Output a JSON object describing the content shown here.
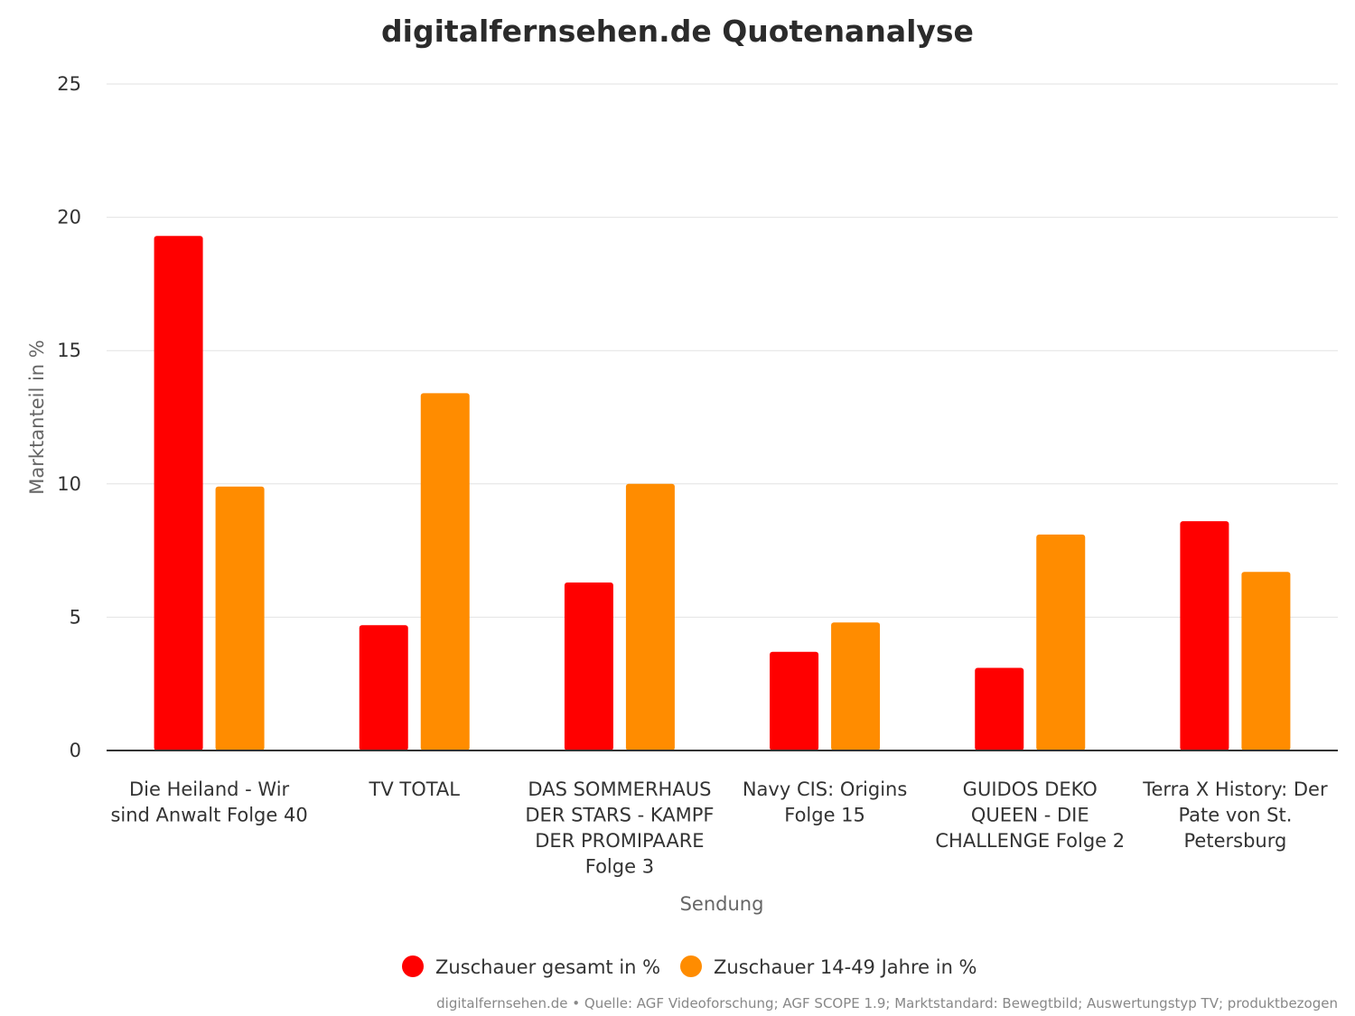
{
  "chart_data": {
    "type": "bar",
    "title": "digitalfernsehen.de Quotenanalyse",
    "xlabel": "Sendung",
    "ylabel": "Marktanteil in %",
    "ylim": [
      0,
      25
    ],
    "yticks": [
      "0",
      "5",
      "10",
      "15",
      "20",
      "25"
    ],
    "grid": true,
    "legend_position": "bottom-center",
    "categories": [
      [
        "Die Heiland - Wir",
        "sind Anwalt Folge 40"
      ],
      [
        "TV TOTAL"
      ],
      [
        "DAS SOMMERHAUS",
        "DER STARS - KAMPF",
        "DER PROMIPAARE",
        "Folge 3"
      ],
      [
        "Navy CIS: Origins",
        "Folge 15"
      ],
      [
        "GUIDOS DEKO",
        "QUEEN - DIE",
        "CHALLENGE Folge 2"
      ],
      [
        "Terra X History: Der",
        "Pate von St.",
        "Petersburg"
      ]
    ],
    "series": [
      {
        "name": "Zuschauer gesamt in %",
        "color": "#ff0000",
        "values": [
          19.3,
          4.7,
          6.3,
          3.7,
          3.1,
          8.6
        ]
      },
      {
        "name": "Zuschauer 14-49 Jahre in %",
        "color": "#ff8c00",
        "values": [
          9.9,
          13.4,
          10.0,
          4.8,
          8.1,
          6.7
        ]
      }
    ],
    "credits": "digitalfernsehen.de • Quelle: AGF Videoforschung; AGF SCOPE 1.9; Marktstandard: Bewegtbild; Auswertungstyp TV; produktbezogen"
  }
}
